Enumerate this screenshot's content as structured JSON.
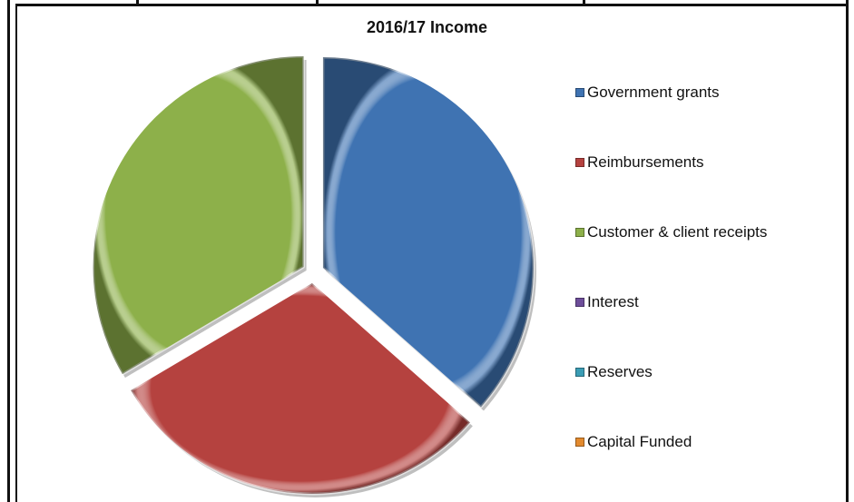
{
  "chart_data": {
    "type": "pie",
    "title": "2016/17 Income",
    "legend_position": "right",
    "style": "3d-bevel-exploded",
    "categories": [
      "Government grants",
      "Reimbursements",
      "Customer & client receipts",
      "Interest",
      "Reserves",
      "Capital Funded"
    ],
    "values": [
      36.5,
      30,
      33.5,
      0,
      0,
      0
    ],
    "colors": [
      "#3F73B2",
      "#B5423F",
      "#8DB04A",
      "#6E4E9A",
      "#3B9DB5",
      "#E38A2E"
    ]
  }
}
